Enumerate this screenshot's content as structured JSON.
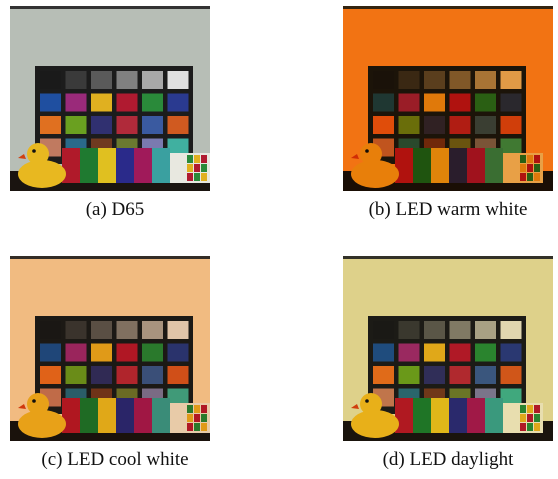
{
  "panels": [
    {
      "caption": "(a) D65"
    },
    {
      "caption": "(b) LED warm white"
    },
    {
      "caption": "(c) LED cool white"
    },
    {
      "caption": "(d) LED daylight"
    }
  ]
}
